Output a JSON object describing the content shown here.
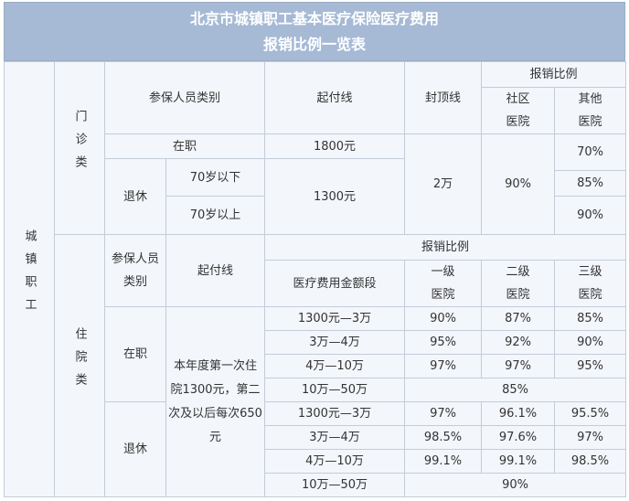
{
  "title": [
    "北京市城镇职工基本医疗保险医疗费用",
    "报销比例一览表"
  ],
  "group": "城镇职工",
  "outpatient": {
    "label": "门诊类",
    "headers": {
      "category": "参保人员类别",
      "deductible": "起付线",
      "cap": "封顶线",
      "ratio": "报销比例",
      "community": "社区医院",
      "other": "其他医院"
    },
    "employed": {
      "label": "在职",
      "deductible": "1800元",
      "other": "70%"
    },
    "retired": {
      "label": "退休",
      "deductible": "1300元",
      "under70": {
        "label": "70岁以下",
        "other": "85%"
      },
      "over70": {
        "label": "70岁以上",
        "other": "90%"
      }
    },
    "cap": "2万",
    "community": "90%"
  },
  "inpatient": {
    "label": "住院类",
    "headers": {
      "category": "参保人员类别",
      "deductible": "起付线",
      "ratio": "报销比例",
      "band": "医疗费用金额段",
      "level1": "一级医院",
      "level2": "二级医院",
      "level3": "三级医院"
    },
    "deductible": "本年度第一次住院1300元，第二次及以后每次650元",
    "employed": {
      "label": "在职",
      "rows": [
        [
          "1300元—3万",
          "90%",
          "87%",
          "85%"
        ],
        [
          "3万—4万",
          "95%",
          "92%",
          "90%"
        ],
        [
          "4万—10万",
          "97%",
          "97%",
          "95%"
        ],
        [
          "10万—50万",
          "85%"
        ]
      ]
    },
    "retired": {
      "label": "退休",
      "rows": [
        [
          "1300元—3万",
          "97%",
          "96.1%",
          "95.5%"
        ],
        [
          "3万—4万",
          "98.5%",
          "97.6%",
          "97%"
        ],
        [
          "4万—10万",
          "99.1%",
          "99.1%",
          "98.5%"
        ],
        [
          "10万—50万",
          "90%"
        ]
      ]
    }
  }
}
